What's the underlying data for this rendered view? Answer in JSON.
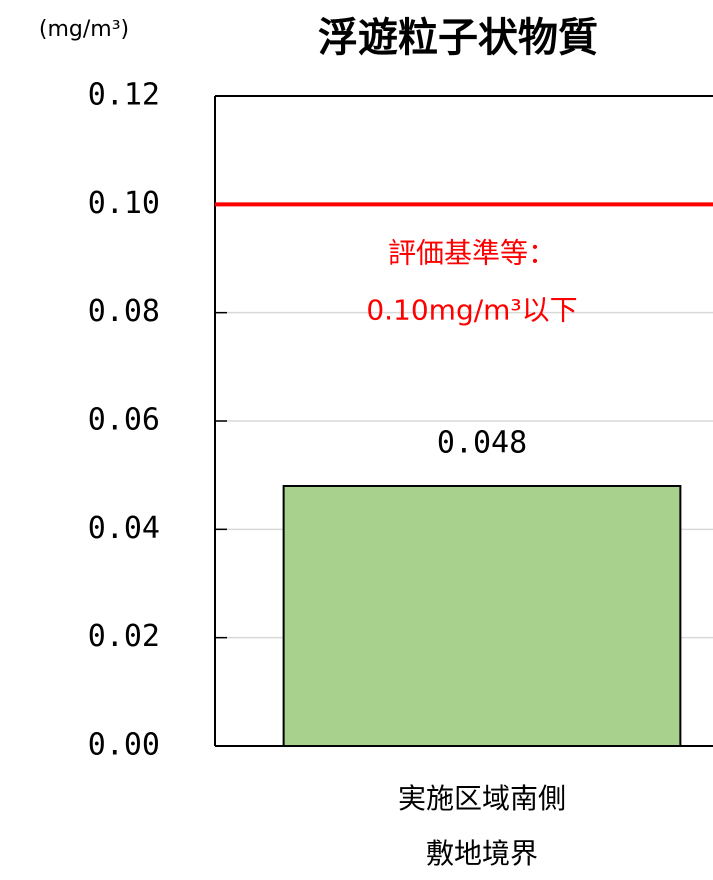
{
  "chart_data": {
    "type": "bar",
    "title": "浮遊粒子状物質",
    "ylabel": "(mg/m³)",
    "categories": [
      "実施区域南側\n敷地境界"
    ],
    "values": [
      0.048
    ],
    "color": "#a9d18e",
    "ylim": [
      0,
      0.12
    ],
    "yticks": [
      {
        "value": 0,
        "label": "0.00"
      },
      {
        "value": 0.02,
        "label": "0.02"
      },
      {
        "value": 0.04,
        "label": "0.04"
      },
      {
        "value": 0.06,
        "label": "0.06"
      },
      {
        "value": 0.08,
        "label": "0.08"
      },
      {
        "value": 0.1,
        "label": "0.10"
      },
      {
        "value": 0.12,
        "label": "0.12"
      }
    ],
    "grid": true,
    "reference_line": {
      "value": 0.1,
      "color": "#ff0000",
      "label": [
        "評価基準等：",
        "0.10mg/m³以下"
      ]
    }
  }
}
